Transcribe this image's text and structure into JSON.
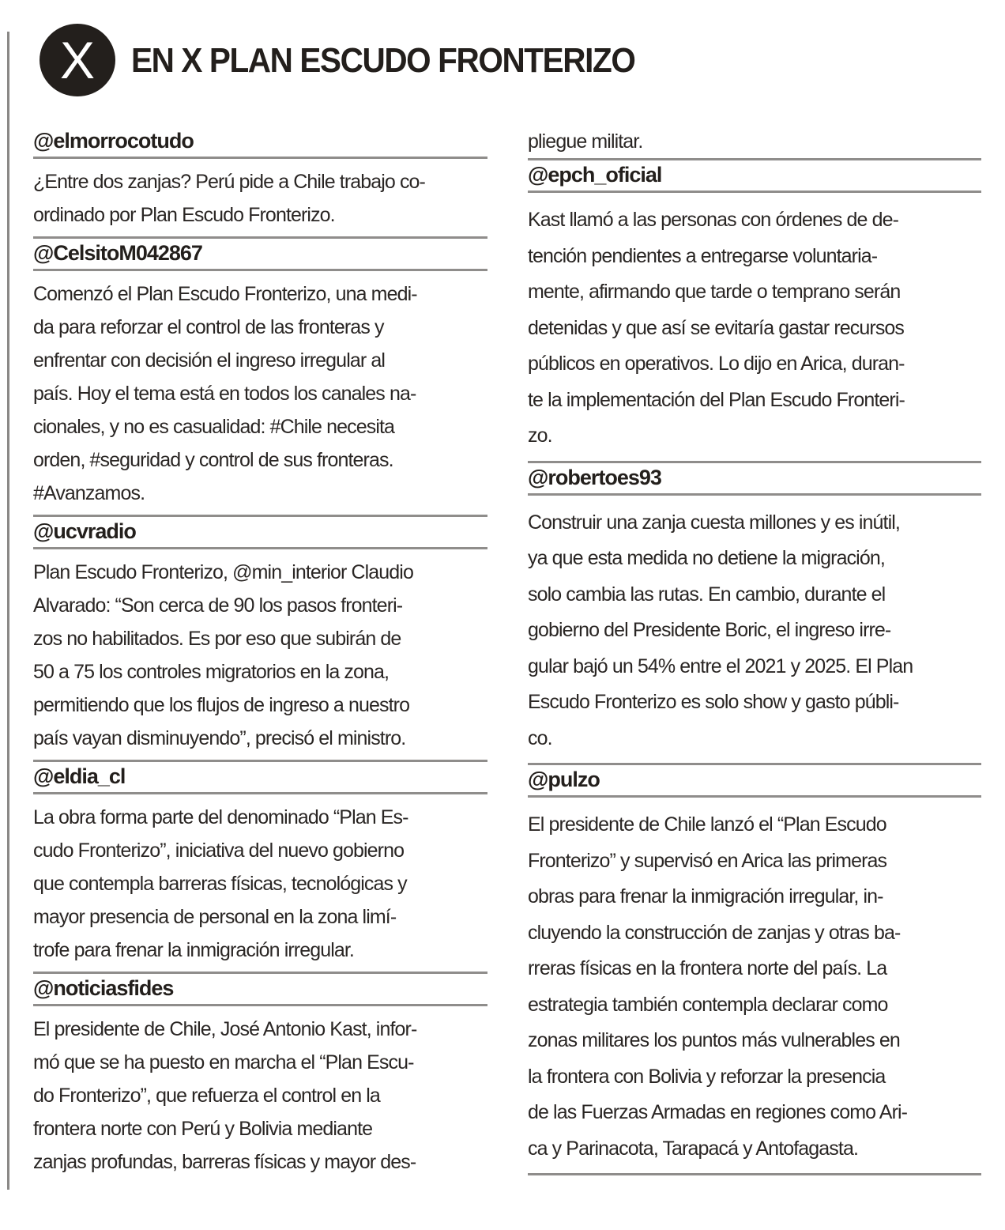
{
  "header": {
    "logo_letter": "X",
    "title": "EN X PLAN ESCUDO FRONTERIZO"
  },
  "left_column": [
    {
      "handle": "@elmorrocotudo",
      "lines": [
        "¿Entre dos zanjas? Perú pide a Chile trabajo co-",
        "ordinado por Plan Escudo Fronterizo."
      ]
    },
    {
      "handle": "@CelsitoM042867",
      "lines": [
        "Comenzó  el Plan Escudo Fronterizo, una medi-",
        "da para reforzar el control de las fronteras y",
        "enfrentar con decisión el ingreso irregular al",
        "país. Hoy el tema está en todos los canales na-",
        "cionales, y no es casualidad: #Chile necesita",
        "orden, #seguridad y control de sus fronteras.",
        "#Avanzamos."
      ]
    },
    {
      "handle": "@ucvradio",
      "lines": [
        "Plan Escudo Fronterizo, @min_interior Claudio",
        "Alvarado: “Son cerca de 90 los pasos fronteri-",
        "zos no habilitados. Es por eso que subirán de",
        "50 a 75 los controles migratorios en la zona,",
        "permitiendo que los flujos de ingreso a nuestro",
        "país vayan disminuyendo”, precisó el ministro."
      ]
    },
    {
      "handle": "@eldia_cl",
      "lines": [
        "La obra forma parte del denominado “Plan Es-",
        "cudo Fronterizo”, iniciativa del nuevo gobierno",
        "que contempla barreras físicas, tecnológicas y",
        "mayor presencia de personal en la zona limí-",
        "trofe para frenar la inmigración irregular."
      ]
    },
    {
      "handle": "@noticiasfides",
      "lines": [
        "El presidente de Chile, José Antonio Kast, infor-",
        "mó que se ha puesto en marcha el “Plan Escu-",
        "do Fronterizo”, que refuerza el control en la",
        "frontera norte con Perú y Bolivia mediante",
        "zanjas profundas, barreras físicas y mayor des-"
      ]
    }
  ],
  "right_column": {
    "continuation": "pliegue militar.",
    "posts": [
      {
        "handle": "@epch_oficial",
        "lines": [
          "Kast llamó a las personas con órdenes de de-",
          "tención pendientes a entregarse voluntaria-",
          "mente, afirmando que tarde o temprano serán",
          "detenidas y que así se evitaría gastar recursos",
          "públicos en operativos. Lo dijo en Arica, duran-",
          "te la implementación del Plan Escudo Fronteri-",
          "zo."
        ]
      },
      {
        "handle": "@robertoes93",
        "lines": [
          "Construir una zanja cuesta millones y es inútil,",
          "ya que esta medida no detiene la migración,",
          "solo cambia las rutas. En cambio, durante el",
          "gobierno del Presidente Boric, el ingreso irre-",
          "gular bajó un 54% entre el 2021 y 2025. El Plan",
          "Escudo Fronterizo es solo show y gasto públi-",
          "co."
        ]
      },
      {
        "handle": "@pulzo",
        "lines": [
          "El presidente de Chile lanzó el “Plan Escudo",
          "Fronterizo” y supervisó en Arica las primeras",
          "obras para frenar la inmigración irregular, in-",
          "cluyendo la construcción de zanjas y otras ba-",
          "rreras físicas en la frontera norte del país. La",
          "estrategia también contempla declarar como",
          "zonas militares los puntos más vulnerables en",
          "la frontera con Bolivia y reforzar la presencia",
          "de las Fuerzas Armadas en regiones como Ari-",
          "ca y Parinacota, Tarapacá y Antofagasta."
        ]
      }
    ]
  }
}
